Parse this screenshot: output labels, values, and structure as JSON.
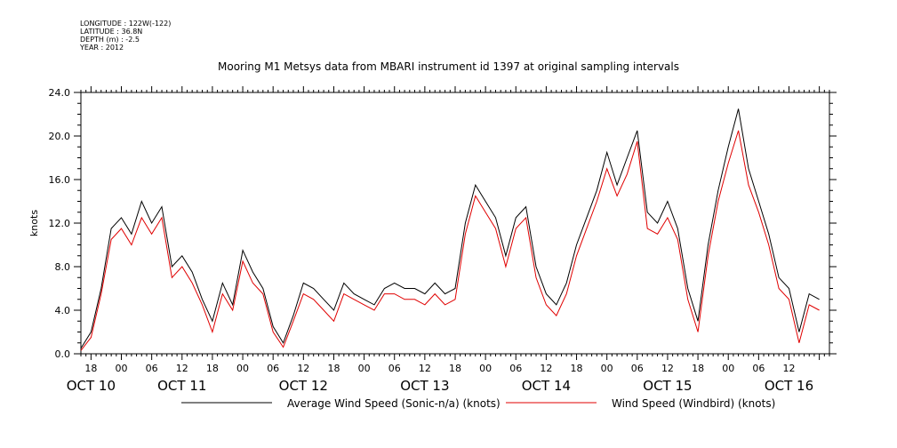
{
  "meta": {
    "longitude": "LONGITUDE : 122W(-122)",
    "latitude": "LATITUDE : 36.8N",
    "depth": "DEPTH (m) : -2.5",
    "year": "YEAR : 2012"
  },
  "chart_data": {
    "type": "line",
    "title": "Mooring M1 Metsys data from MBARI instrument id 1397 at original sampling intervals",
    "ylabel": "knots",
    "xlabel": "",
    "ylim": [
      0,
      24
    ],
    "xlim": [
      "2012-10-10T16:00",
      "2012-10-16T20:00"
    ],
    "y_ticks": [
      "0.0",
      "4.0",
      "8.0",
      "12.0",
      "16.0",
      "20.0",
      "24.0"
    ],
    "x_hour_ticks": [
      {
        "t": "2012-10-10T18:00",
        "label": "18"
      },
      {
        "t": "2012-10-11T00:00",
        "label": "00"
      },
      {
        "t": "2012-10-11T06:00",
        "label": "06"
      },
      {
        "t": "2012-10-11T12:00",
        "label": "12"
      },
      {
        "t": "2012-10-11T18:00",
        "label": "18"
      },
      {
        "t": "2012-10-12T00:00",
        "label": "00"
      },
      {
        "t": "2012-10-12T06:00",
        "label": "06"
      },
      {
        "t": "2012-10-12T12:00",
        "label": "12"
      },
      {
        "t": "2012-10-12T18:00",
        "label": "18"
      },
      {
        "t": "2012-10-13T00:00",
        "label": "00"
      },
      {
        "t": "2012-10-13T06:00",
        "label": "06"
      },
      {
        "t": "2012-10-13T12:00",
        "label": "12"
      },
      {
        "t": "2012-10-13T18:00",
        "label": "18"
      },
      {
        "t": "2012-10-14T00:00",
        "label": "00"
      },
      {
        "t": "2012-10-14T06:00",
        "label": "06"
      },
      {
        "t": "2012-10-14T12:00",
        "label": "12"
      },
      {
        "t": "2012-10-14T18:00",
        "label": "18"
      },
      {
        "t": "2012-10-15T00:00",
        "label": "00"
      },
      {
        "t": "2012-10-15T06:00",
        "label": "06"
      },
      {
        "t": "2012-10-15T12:00",
        "label": "12"
      },
      {
        "t": "2012-10-15T18:00",
        "label": "18"
      },
      {
        "t": "2012-10-16T00:00",
        "label": "00"
      },
      {
        "t": "2012-10-16T06:00",
        "label": "06"
      },
      {
        "t": "2012-10-16T12:00",
        "label": "12"
      }
    ],
    "x_day_labels": [
      {
        "t": "2012-10-10T18:00",
        "label": "OCT 10"
      },
      {
        "t": "2012-10-11T12:00",
        "label": "OCT 11"
      },
      {
        "t": "2012-10-12T12:00",
        "label": "OCT 12"
      },
      {
        "t": "2012-10-13T12:00",
        "label": "OCT 13"
      },
      {
        "t": "2012-10-14T12:00",
        "label": "OCT 14"
      },
      {
        "t": "2012-10-15T12:00",
        "label": "OCT 15"
      },
      {
        "t": "2012-10-16T12:00",
        "label": "OCT 16"
      }
    ],
    "grid": false,
    "legend_position": "bottom",
    "series": [
      {
        "name": "Average Wind Speed (Sonic-n/a) (knots)",
        "color": "#000000",
        "x": [
          "2012-10-10T16:00",
          "2012-10-10T18:00",
          "2012-10-10T20:00",
          "2012-10-10T22:00",
          "2012-10-11T00:00",
          "2012-10-11T02:00",
          "2012-10-11T04:00",
          "2012-10-11T06:00",
          "2012-10-11T08:00",
          "2012-10-11T10:00",
          "2012-10-11T12:00",
          "2012-10-11T14:00",
          "2012-10-11T16:00",
          "2012-10-11T18:00",
          "2012-10-11T20:00",
          "2012-10-11T22:00",
          "2012-10-12T00:00",
          "2012-10-12T02:00",
          "2012-10-12T04:00",
          "2012-10-12T06:00",
          "2012-10-12T08:00",
          "2012-10-12T10:00",
          "2012-10-12T12:00",
          "2012-10-12T14:00",
          "2012-10-12T16:00",
          "2012-10-12T18:00",
          "2012-10-12T20:00",
          "2012-10-12T22:00",
          "2012-10-13T00:00",
          "2012-10-13T02:00",
          "2012-10-13T04:00",
          "2012-10-13T06:00",
          "2012-10-13T08:00",
          "2012-10-13T10:00",
          "2012-10-13T12:00",
          "2012-10-13T14:00",
          "2012-10-13T16:00",
          "2012-10-13T18:00",
          "2012-10-13T20:00",
          "2012-10-13T22:00",
          "2012-10-14T00:00",
          "2012-10-14T02:00",
          "2012-10-14T04:00",
          "2012-10-14T06:00",
          "2012-10-14T08:00",
          "2012-10-14T10:00",
          "2012-10-14T12:00",
          "2012-10-14T14:00",
          "2012-10-14T16:00",
          "2012-10-14T18:00",
          "2012-10-14T20:00",
          "2012-10-14T22:00",
          "2012-10-15T00:00",
          "2012-10-15T02:00",
          "2012-10-15T04:00",
          "2012-10-15T06:00",
          "2012-10-15T08:00",
          "2012-10-15T10:00",
          "2012-10-15T12:00",
          "2012-10-15T14:00",
          "2012-10-15T16:00",
          "2012-10-15T18:00",
          "2012-10-15T20:00",
          "2012-10-15T22:00",
          "2012-10-16T00:00",
          "2012-10-16T02:00",
          "2012-10-16T04:00",
          "2012-10-16T06:00",
          "2012-10-16T08:00",
          "2012-10-16T10:00",
          "2012-10-16T12:00",
          "2012-10-16T14:00",
          "2012-10-16T16:00",
          "2012-10-16T18:00"
        ],
        "values": [
          0.5,
          2.0,
          6.0,
          11.5,
          12.5,
          11.0,
          14.0,
          12.0,
          13.5,
          8.0,
          9.0,
          7.5,
          5.0,
          3.0,
          6.5,
          4.5,
          9.5,
          7.5,
          6.0,
          2.5,
          1.0,
          3.5,
          6.5,
          6.0,
          5.0,
          4.0,
          6.5,
          5.5,
          5.0,
          4.5,
          6.0,
          6.5,
          6.0,
          6.0,
          5.5,
          6.5,
          5.5,
          6.0,
          12.0,
          15.5,
          14.0,
          12.5,
          9.0,
          12.5,
          13.5,
          8.0,
          5.5,
          4.5,
          6.5,
          10.0,
          12.5,
          15.0,
          18.5,
          15.5,
          18.0,
          20.5,
          13.0,
          12.0,
          14.0,
          11.5,
          6.0,
          3.0,
          10.0,
          15.0,
          19.0,
          22.5,
          17.0,
          14.0,
          11.0,
          7.0,
          6.0,
          2.0,
          5.5,
          5.0
        ]
      },
      {
        "name": "Wind Speed (Windbird) (knots)",
        "color": "#e00000",
        "x": [
          "2012-10-10T16:00",
          "2012-10-10T18:00",
          "2012-10-10T20:00",
          "2012-10-10T22:00",
          "2012-10-11T00:00",
          "2012-10-11T02:00",
          "2012-10-11T04:00",
          "2012-10-11T06:00",
          "2012-10-11T08:00",
          "2012-10-11T10:00",
          "2012-10-11T12:00",
          "2012-10-11T14:00",
          "2012-10-11T16:00",
          "2012-10-11T18:00",
          "2012-10-11T20:00",
          "2012-10-11T22:00",
          "2012-10-12T00:00",
          "2012-10-12T02:00",
          "2012-10-12T04:00",
          "2012-10-12T06:00",
          "2012-10-12T08:00",
          "2012-10-12T10:00",
          "2012-10-12T12:00",
          "2012-10-12T14:00",
          "2012-10-12T16:00",
          "2012-10-12T18:00",
          "2012-10-12T20:00",
          "2012-10-12T22:00",
          "2012-10-13T00:00",
          "2012-10-13T02:00",
          "2012-10-13T04:00",
          "2012-10-13T06:00",
          "2012-10-13T08:00",
          "2012-10-13T10:00",
          "2012-10-13T12:00",
          "2012-10-13T14:00",
          "2012-10-13T16:00",
          "2012-10-13T18:00",
          "2012-10-13T20:00",
          "2012-10-13T22:00",
          "2012-10-14T00:00",
          "2012-10-14T02:00",
          "2012-10-14T04:00",
          "2012-10-14T06:00",
          "2012-10-14T08:00",
          "2012-10-14T10:00",
          "2012-10-14T12:00",
          "2012-10-14T14:00",
          "2012-10-14T16:00",
          "2012-10-14T18:00",
          "2012-10-14T20:00",
          "2012-10-14T22:00",
          "2012-10-15T00:00",
          "2012-10-15T02:00",
          "2012-10-15T04:00",
          "2012-10-15T06:00",
          "2012-10-15T08:00",
          "2012-10-15T10:00",
          "2012-10-15T12:00",
          "2012-10-15T14:00",
          "2012-10-15T16:00",
          "2012-10-15T18:00",
          "2012-10-15T20:00",
          "2012-10-15T22:00",
          "2012-10-16T00:00",
          "2012-10-16T02:00",
          "2012-10-16T04:00",
          "2012-10-16T06:00",
          "2012-10-16T08:00",
          "2012-10-16T10:00",
          "2012-10-16T12:00",
          "2012-10-16T14:00",
          "2012-10-16T16:00",
          "2012-10-16T18:00"
        ],
        "values": [
          0.3,
          1.5,
          5.5,
          10.5,
          11.5,
          10.0,
          12.5,
          11.0,
          12.5,
          7.0,
          8.0,
          6.5,
          4.5,
          2.0,
          5.5,
          4.0,
          8.5,
          6.5,
          5.5,
          2.0,
          0.6,
          3.0,
          5.5,
          5.0,
          4.0,
          3.0,
          5.5,
          5.0,
          4.5,
          4.0,
          5.5,
          5.5,
          5.0,
          5.0,
          4.5,
          5.5,
          4.5,
          5.0,
          11.0,
          14.5,
          13.0,
          11.5,
          8.0,
          11.5,
          12.5,
          7.0,
          4.5,
          3.5,
          5.5,
          9.0,
          11.5,
          14.0,
          17.0,
          14.5,
          16.5,
          19.5,
          11.5,
          11.0,
          12.5,
          10.5,
          5.0,
          2.0,
          9.0,
          14.0,
          17.5,
          20.5,
          15.5,
          13.0,
          10.0,
          6.0,
          5.0,
          1.0,
          4.5,
          4.0
        ]
      }
    ]
  }
}
